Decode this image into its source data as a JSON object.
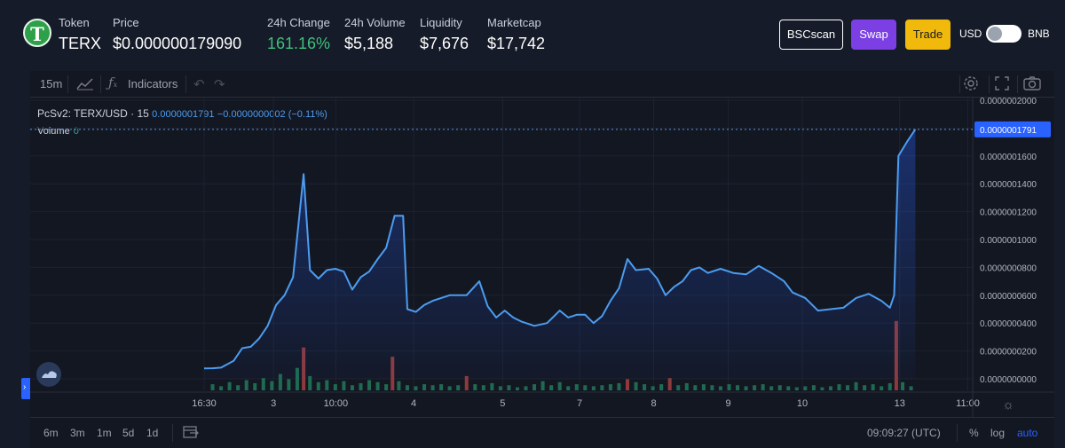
{
  "token": {
    "logo_letter": "T",
    "label": "Token",
    "symbol": "TERX"
  },
  "stats": {
    "price_label": "Price",
    "price_value": "$0.000000179090",
    "change_label": "24h Change",
    "change_value": "161.16%",
    "volume_label": "24h Volume",
    "volume_value": "$5,188",
    "liquidity_label": "Liquidity",
    "liquidity_value": "$7,676",
    "marketcap_label": "Marketcap",
    "marketcap_value": "$17,742"
  },
  "actions": {
    "bscscan_label": "BSCscan",
    "swap_label": "Swap",
    "trade_label": "Trade",
    "currency_left": "USD",
    "currency_right": "BNB"
  },
  "colors": {
    "accent_green": "#3fc07a",
    "swap_purple": "#7b3fe4",
    "trade_yellow": "#f0b90b",
    "line_blue": "#4c9cf0",
    "vol_up": "#26a69a",
    "vol_down": "#ef5350"
  },
  "toolbar": {
    "interval": "15m",
    "bars_icon": "candles-icon",
    "indicators_icon": "fx-icon",
    "indicators_label": "Indicators",
    "undo_icon": "undo-icon",
    "redo_icon": "redo-icon",
    "settings_icon": "gear-icon",
    "fullscreen_icon": "fullscreen-icon",
    "screenshot_icon": "camera-icon"
  },
  "legend": {
    "pair": "PcSv2: TERX/USD · 15",
    "value": "0.0000001791",
    "change": "−0.0000000002 (−0.11%)",
    "volume_label": "Volume",
    "volume_value": "0"
  },
  "bottombar": {
    "ranges": [
      "6m",
      "3m",
      "1m",
      "5d",
      "1d"
    ],
    "goto_icon": "calendar-goto-icon",
    "time": "09:09:27 (UTC)",
    "percent": "%",
    "log": "log",
    "auto": "auto"
  },
  "chart_data": {
    "type": "area",
    "title": "PcSv2: TERX/USD · 15",
    "ylim": [
      0,
      2e-07
    ],
    "y_ticks": [
      "0.0000002000",
      "0.0000001800",
      "0.0000001600",
      "0.0000001400",
      "0.0000001200",
      "0.0000001000",
      "0.0000000800",
      "0.0000000600",
      "0.0000000400",
      "0.0000000200",
      "0.0000000000"
    ],
    "y_tick_values": [
      2e-07,
      1.8e-07,
      1.6e-07,
      1.4e-07,
      1.2e-07,
      1e-07,
      8e-08,
      6e-08,
      4e-08,
      2e-08,
      0
    ],
    "current_price_label": "0.0000001791",
    "current_price": 1.791e-07,
    "x_ticks": [
      "16:30",
      "3",
      "10:00",
      "4",
      "5",
      "7",
      "8",
      "9",
      "10",
      "13",
      "11:00"
    ],
    "x_tick_positions": [
      0.0,
      0.164,
      0.311,
      0.495,
      0.705,
      0.887,
      1.062,
      1.238,
      1.413,
      1.643,
      1.804
    ],
    "price_series": [
      [
        0.0,
        7.5e-09
      ],
      [
        0.02,
        7.6e-09
      ],
      [
        0.04,
        8e-09
      ],
      [
        0.07,
        1.3e-08
      ],
      [
        0.09,
        2.2e-08
      ],
      [
        0.11,
        2.3e-08
      ],
      [
        0.13,
        2.9e-08
      ],
      [
        0.15,
        3.8e-08
      ],
      [
        0.17,
        5.3e-08
      ],
      [
        0.19,
        6e-08
      ],
      [
        0.21,
        7.3e-08
      ],
      [
        0.235,
        1.47e-07
      ],
      [
        0.25,
        7.8e-08
      ],
      [
        0.27,
        7.2e-08
      ],
      [
        0.29,
        7.8e-08
      ],
      [
        0.31,
        7.9e-08
      ],
      [
        0.33,
        7.7e-08
      ],
      [
        0.35,
        6.4e-08
      ],
      [
        0.37,
        7.3e-08
      ],
      [
        0.39,
        7.7e-08
      ],
      [
        0.41,
        8.6e-08
      ],
      [
        0.43,
        9.4e-08
      ],
      [
        0.45,
        1.17e-07
      ],
      [
        0.47,
        1.17e-07
      ],
      [
        0.48,
        5e-08
      ],
      [
        0.5,
        4.8e-08
      ],
      [
        0.52,
        5.3e-08
      ],
      [
        0.54,
        5.6e-08
      ],
      [
        0.56,
        5.8e-08
      ],
      [
        0.58,
        6e-08
      ],
      [
        0.62,
        6e-08
      ],
      [
        0.65,
        7e-08
      ],
      [
        0.67,
        5.2e-08
      ],
      [
        0.69,
        4.4e-08
      ],
      [
        0.71,
        4.9e-08
      ],
      [
        0.73,
        4.4e-08
      ],
      [
        0.75,
        4.1e-08
      ],
      [
        0.78,
        3.8e-08
      ],
      [
        0.81,
        4e-08
      ],
      [
        0.84,
        4.9e-08
      ],
      [
        0.86,
        4.4e-08
      ],
      [
        0.88,
        4.6e-08
      ],
      [
        0.9,
        4.6e-08
      ],
      [
        0.92,
        4e-08
      ],
      [
        0.94,
        4.5e-08
      ],
      [
        0.96,
        5.6e-08
      ],
      [
        0.98,
        6.5e-08
      ],
      [
        1.0,
        8.6e-08
      ],
      [
        1.02,
        7.8e-08
      ],
      [
        1.05,
        7.9e-08
      ],
      [
        1.07,
        7.2e-08
      ],
      [
        1.09,
        6e-08
      ],
      [
        1.11,
        6.6e-08
      ],
      [
        1.13,
        7e-08
      ],
      [
        1.15,
        7.8e-08
      ],
      [
        1.17,
        8e-08
      ],
      [
        1.19,
        7.6e-08
      ],
      [
        1.22,
        7.9e-08
      ],
      [
        1.25,
        7.6e-08
      ],
      [
        1.28,
        7.5e-08
      ],
      [
        1.31,
        8.1e-08
      ],
      [
        1.34,
        7.6e-08
      ],
      [
        1.37,
        7e-08
      ],
      [
        1.39,
        6.2e-08
      ],
      [
        1.42,
        5.8e-08
      ],
      [
        1.45,
        4.9e-08
      ],
      [
        1.48,
        5e-08
      ],
      [
        1.51,
        5.1e-08
      ],
      [
        1.54,
        5.8e-08
      ],
      [
        1.57,
        6.1e-08
      ],
      [
        1.6,
        5.6e-08
      ],
      [
        1.62,
        5.1e-08
      ],
      [
        1.63,
        6e-08
      ],
      [
        1.64,
        1.6e-07
      ],
      [
        1.66,
        1.7e-07
      ],
      [
        1.68,
        1.791e-07
      ]
    ],
    "volume_bars": [
      [
        0.02,
        0.6
      ],
      [
        0.04,
        0.4
      ],
      [
        0.06,
        0.8
      ],
      [
        0.08,
        0.5
      ],
      [
        0.1,
        1.0
      ],
      [
        0.12,
        0.7
      ],
      [
        0.14,
        1.2
      ],
      [
        0.16,
        0.9
      ],
      [
        0.18,
        1.6
      ],
      [
        0.2,
        1.1
      ],
      [
        0.22,
        2.2
      ],
      [
        0.235,
        4.2
      ],
      [
        0.25,
        1.4
      ],
      [
        0.27,
        0.8
      ],
      [
        0.29,
        1.0
      ],
      [
        0.31,
        0.6
      ],
      [
        0.33,
        0.9
      ],
      [
        0.35,
        0.5
      ],
      [
        0.37,
        0.7
      ],
      [
        0.39,
        1.0
      ],
      [
        0.41,
        0.8
      ],
      [
        0.43,
        0.6
      ],
      [
        0.445,
        3.3
      ],
      [
        0.46,
        0.9
      ],
      [
        0.48,
        0.5
      ],
      [
        0.5,
        0.4
      ],
      [
        0.52,
        0.6
      ],
      [
        0.54,
        0.5
      ],
      [
        0.56,
        0.6
      ],
      [
        0.58,
        0.4
      ],
      [
        0.6,
        0.5
      ],
      [
        0.62,
        1.4
      ],
      [
        0.64,
        0.6
      ],
      [
        0.66,
        0.5
      ],
      [
        0.68,
        0.7
      ],
      [
        0.7,
        0.4
      ],
      [
        0.72,
        0.5
      ],
      [
        0.74,
        0.3
      ],
      [
        0.76,
        0.4
      ],
      [
        0.78,
        0.6
      ],
      [
        0.8,
        0.9
      ],
      [
        0.82,
        0.5
      ],
      [
        0.84,
        0.8
      ],
      [
        0.86,
        0.4
      ],
      [
        0.88,
        0.6
      ],
      [
        0.9,
        0.5
      ],
      [
        0.92,
        0.4
      ],
      [
        0.94,
        0.5
      ],
      [
        0.96,
        0.6
      ],
      [
        0.98,
        0.7
      ],
      [
        1.0,
        1.1
      ],
      [
        1.02,
        0.8
      ],
      [
        1.04,
        0.6
      ],
      [
        1.06,
        0.4
      ],
      [
        1.08,
        0.6
      ],
      [
        1.1,
        1.2
      ],
      [
        1.12,
        0.5
      ],
      [
        1.14,
        0.7
      ],
      [
        1.16,
        0.5
      ],
      [
        1.18,
        0.6
      ],
      [
        1.2,
        0.5
      ],
      [
        1.22,
        0.4
      ],
      [
        1.24,
        0.6
      ],
      [
        1.26,
        0.5
      ],
      [
        1.28,
        0.4
      ],
      [
        1.3,
        0.5
      ],
      [
        1.32,
        0.6
      ],
      [
        1.34,
        0.4
      ],
      [
        1.36,
        0.5
      ],
      [
        1.38,
        0.4
      ],
      [
        1.4,
        0.3
      ],
      [
        1.42,
        0.4
      ],
      [
        1.44,
        0.5
      ],
      [
        1.46,
        0.3
      ],
      [
        1.48,
        0.4
      ],
      [
        1.5,
        0.6
      ],
      [
        1.52,
        0.5
      ],
      [
        1.54,
        0.8
      ],
      [
        1.56,
        0.5
      ],
      [
        1.58,
        0.6
      ],
      [
        1.6,
        0.4
      ],
      [
        1.62,
        0.7
      ],
      [
        1.635,
        6.8
      ],
      [
        1.65,
        0.8
      ],
      [
        1.67,
        0.4
      ]
    ],
    "volume_down_indices": [
      11,
      22,
      31,
      50,
      55,
      82
    ]
  }
}
